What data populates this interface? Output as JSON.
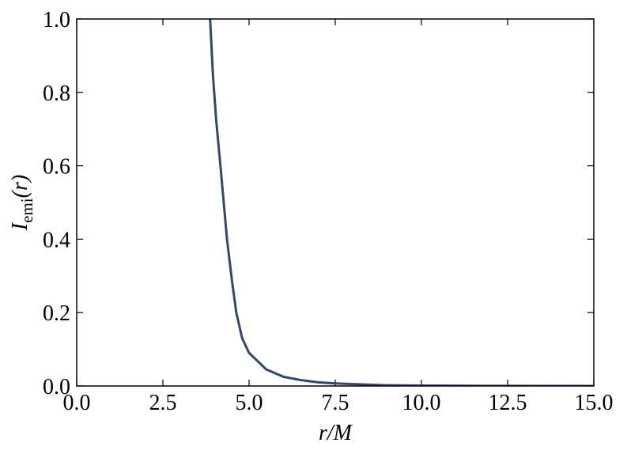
{
  "chart_data": {
    "type": "line",
    "xlabel": "r/M",
    "ylabel": [
      "I",
      "emi",
      "(r)"
    ],
    "series": [
      {
        "color": "#34466e",
        "x": [
          3.87,
          3.95,
          4.05,
          4.17,
          4.36,
          4.5,
          4.63,
          4.8,
          5.0,
          5.5,
          6.0,
          6.5,
          7.0,
          7.5,
          8.0,
          9.0,
          10.0,
          12.0,
          15.0
        ],
        "values": [
          1.0,
          0.85,
          0.72,
          0.6,
          0.4,
          0.29,
          0.2,
          0.13,
          0.09,
          0.045,
          0.025,
          0.016,
          0.01,
          0.007,
          0.005,
          0.002,
          0.001,
          0.0003,
          0.0001
        ]
      }
    ],
    "xlim": [
      0,
      15
    ],
    "ylim": [
      0,
      1
    ],
    "xticks": [
      {
        "value": 0,
        "label": "0.0"
      },
      {
        "value": 2.5,
        "label": "2.5"
      },
      {
        "value": 5,
        "label": "5.0"
      },
      {
        "value": 7.5,
        "label": "7.5"
      },
      {
        "value": 10,
        "label": "10.0"
      },
      {
        "value": 12.5,
        "label": "12.5"
      },
      {
        "value": 15,
        "label": "15.0"
      }
    ],
    "yticks": [
      {
        "value": 0,
        "label": "0.0"
      },
      {
        "value": 0.2,
        "label": "0.2"
      },
      {
        "value": 0.4,
        "label": "0.4"
      },
      {
        "value": 0.6,
        "label": "0.6"
      },
      {
        "value": 0.8,
        "label": "0.8"
      },
      {
        "value": 1,
        "label": "1.0"
      }
    ],
    "grid": false
  }
}
